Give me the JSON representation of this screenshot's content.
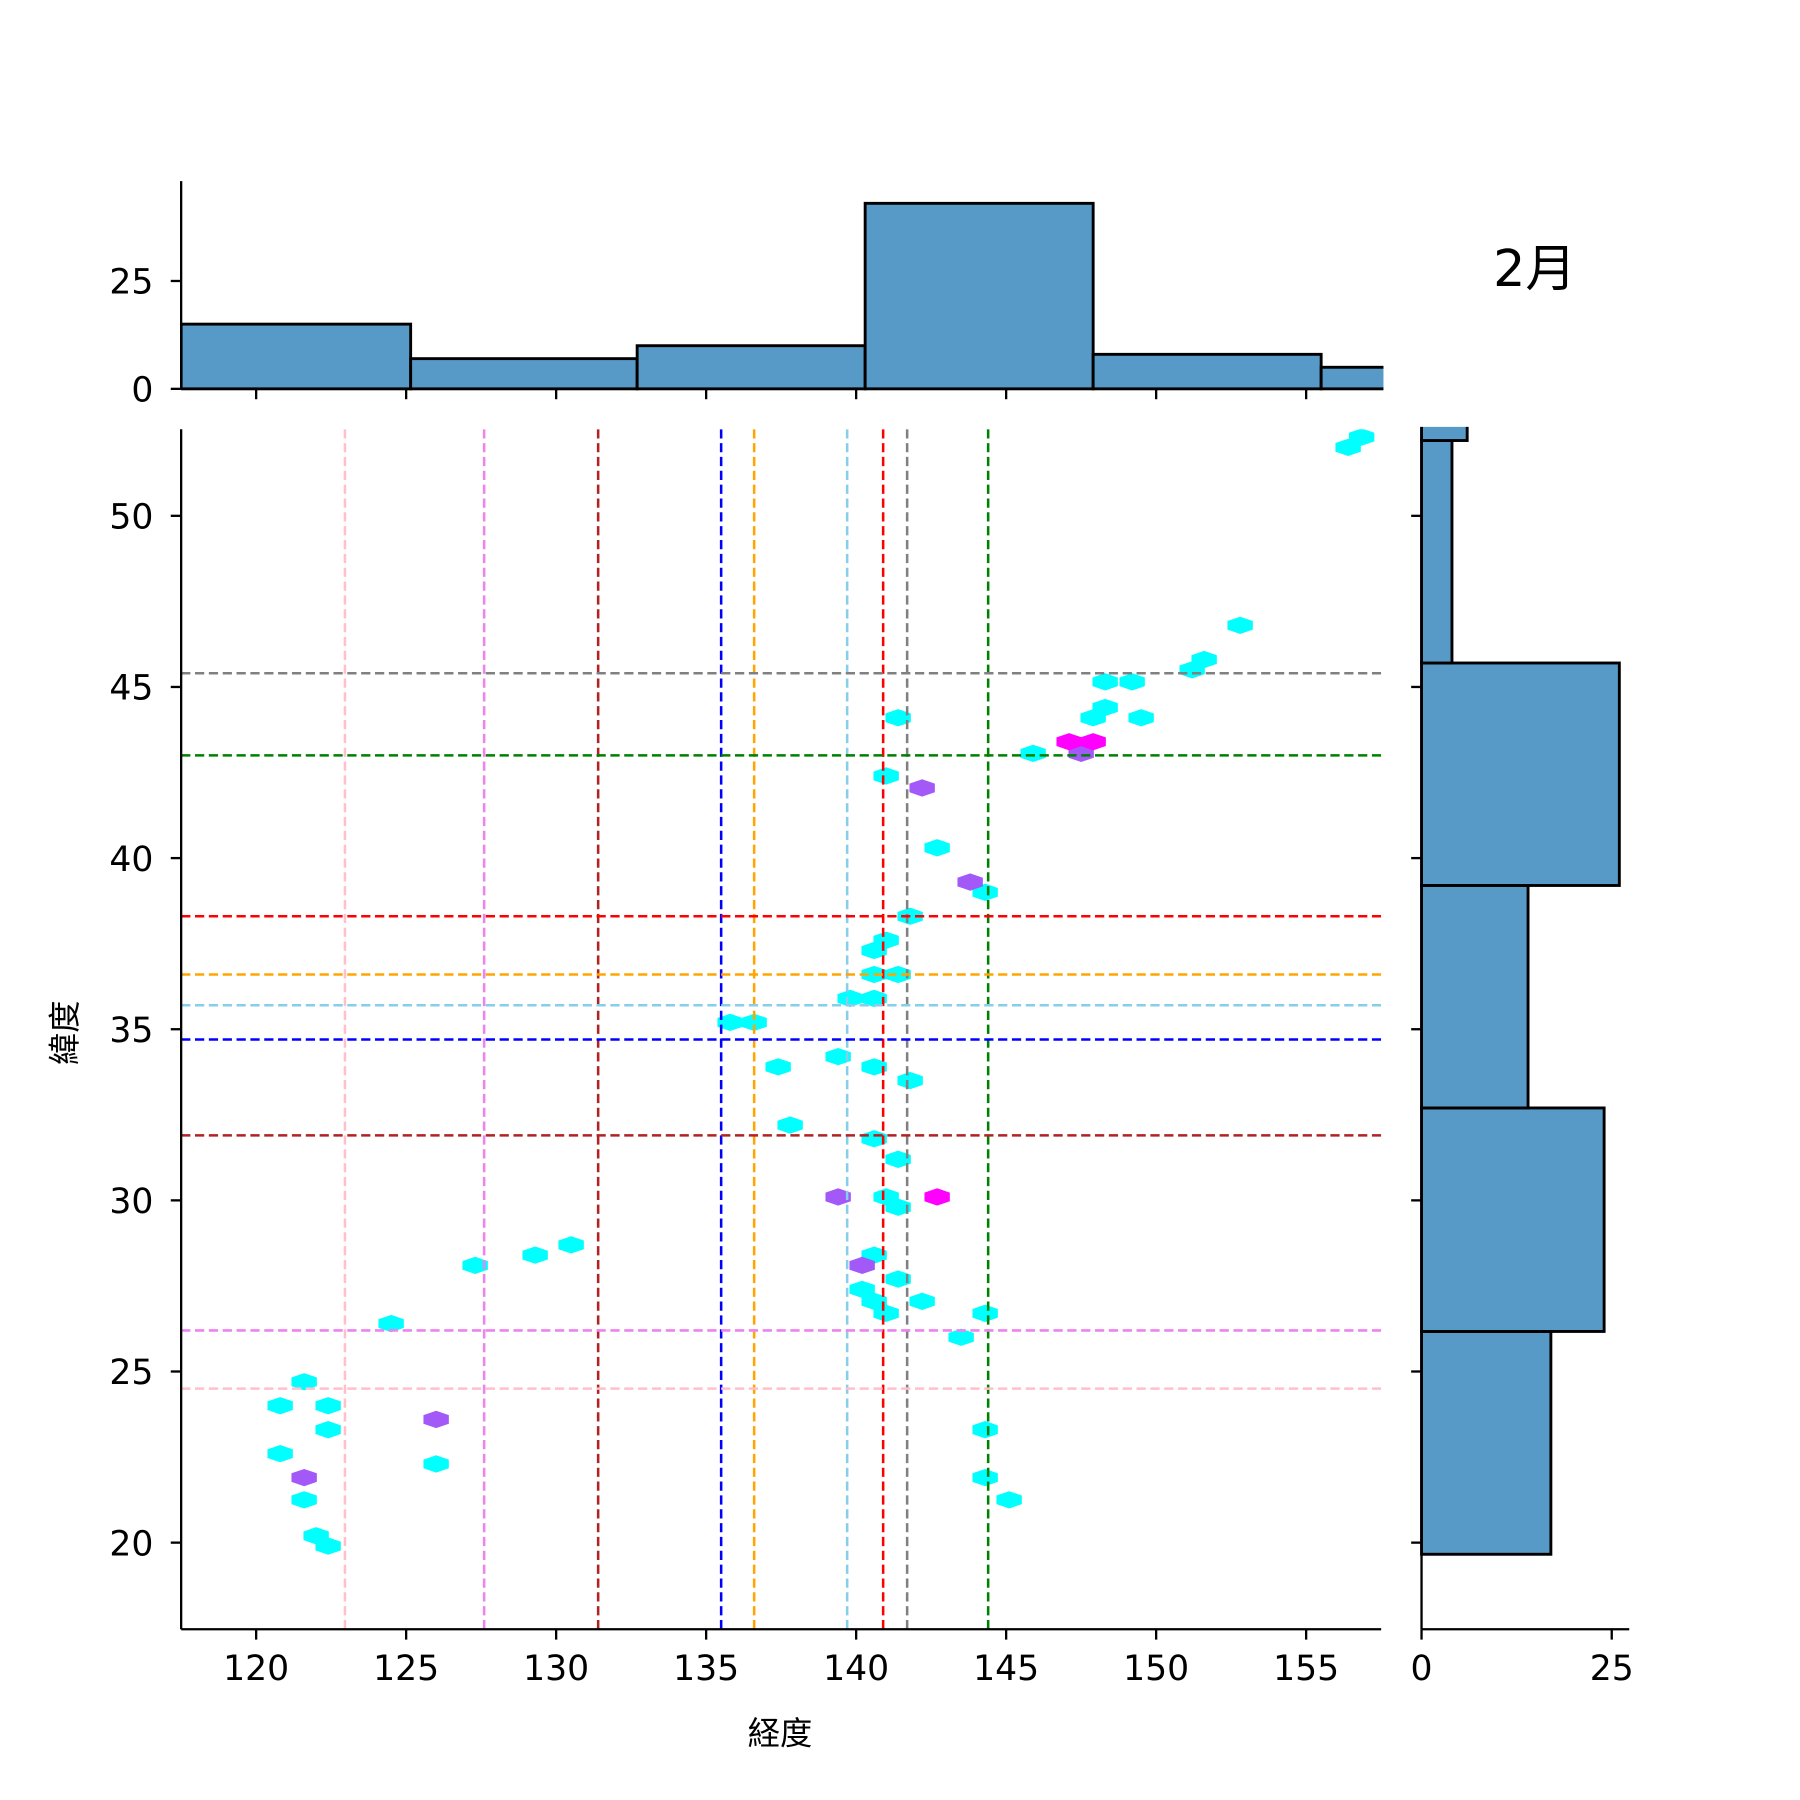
{
  "chart_data": {
    "type": "hexbin-jointplot",
    "title": "2月",
    "xlabel": "経度",
    "ylabel": "緯度",
    "xlim": [
      117.5,
      157.5
    ],
    "ylim": [
      17.47,
      52.53
    ],
    "xticks": [
      120,
      125,
      130,
      135,
      140,
      145,
      150,
      155
    ],
    "yticks": [
      20,
      25,
      30,
      35,
      40,
      45,
      50
    ],
    "colors": {
      "cyan": "#00ffff",
      "purple": "#a259f7",
      "magenta": "#ff00ff",
      "hist": "#5799c7"
    },
    "hexbins": [
      [
        156.85,
        52.3,
        "cyan"
      ],
      [
        156.4,
        52.0,
        "cyan"
      ],
      [
        152.8,
        46.8,
        "cyan"
      ],
      [
        151.6,
        45.8,
        "cyan"
      ],
      [
        151.2,
        45.5,
        "cyan"
      ],
      [
        148.3,
        45.15,
        "cyan"
      ],
      [
        149.2,
        45.15,
        "cyan"
      ],
      [
        148.3,
        44.4,
        "cyan"
      ],
      [
        147.9,
        44.1,
        "cyan"
      ],
      [
        149.5,
        44.1,
        "cyan"
      ],
      [
        141.4,
        44.1,
        "cyan"
      ],
      [
        145.9,
        43.06,
        "cyan"
      ],
      [
        141.0,
        42.4,
        "cyan"
      ],
      [
        142.7,
        40.3,
        "cyan"
      ],
      [
        144.3,
        39.0,
        "cyan"
      ],
      [
        141.8,
        38.3,
        "cyan"
      ],
      [
        141.0,
        37.6,
        "cyan"
      ],
      [
        140.6,
        37.3,
        "cyan"
      ],
      [
        140.6,
        36.6,
        "cyan"
      ],
      [
        141.4,
        36.6,
        "cyan"
      ],
      [
        139.8,
        35.9,
        "cyan"
      ],
      [
        140.6,
        35.9,
        "cyan"
      ],
      [
        135.8,
        35.2,
        "cyan"
      ],
      [
        136.6,
        35.2,
        "cyan"
      ],
      [
        137.4,
        33.9,
        "cyan"
      ],
      [
        139.4,
        34.2,
        "cyan"
      ],
      [
        140.6,
        33.9,
        "cyan"
      ],
      [
        141.8,
        33.5,
        "cyan"
      ],
      [
        137.8,
        32.2,
        "cyan"
      ],
      [
        140.6,
        31.8,
        "cyan"
      ],
      [
        141.4,
        31.2,
        "cyan"
      ],
      [
        141.0,
        30.1,
        "cyan"
      ],
      [
        141.4,
        29.8,
        "cyan"
      ],
      [
        140.6,
        28.4,
        "cyan"
      ],
      [
        140.2,
        27.4,
        "cyan"
      ],
      [
        140.6,
        27.05,
        "cyan"
      ],
      [
        141.4,
        27.7,
        "cyan"
      ],
      [
        141.0,
        26.7,
        "cyan"
      ],
      [
        142.2,
        27.05,
        "cyan"
      ],
      [
        144.3,
        26.7,
        "cyan"
      ],
      [
        143.5,
        26.0,
        "cyan"
      ],
      [
        124.5,
        26.4,
        "cyan"
      ],
      [
        127.3,
        28.1,
        "cyan"
      ],
      [
        129.3,
        28.4,
        "cyan"
      ],
      [
        130.5,
        28.7,
        "cyan"
      ],
      [
        121.6,
        24.7,
        "cyan"
      ],
      [
        120.8,
        24.0,
        "cyan"
      ],
      [
        122.4,
        24.0,
        "cyan"
      ],
      [
        122.4,
        23.3,
        "cyan"
      ],
      [
        120.8,
        22.6,
        "cyan"
      ],
      [
        126.0,
        22.3,
        "cyan"
      ],
      [
        121.6,
        21.25,
        "cyan"
      ],
      [
        122.0,
        20.2,
        "cyan"
      ],
      [
        122.4,
        19.9,
        "cyan"
      ],
      [
        144.3,
        23.3,
        "cyan"
      ],
      [
        144.3,
        21.9,
        "cyan"
      ],
      [
        145.1,
        21.25,
        "cyan"
      ],
      [
        147.5,
        43.06,
        "purple"
      ],
      [
        142.2,
        42.05,
        "purple"
      ],
      [
        143.8,
        39.3,
        "purple"
      ],
      [
        139.4,
        30.1,
        "purple"
      ],
      [
        140.2,
        28.1,
        "purple"
      ],
      [
        126.0,
        23.6,
        "purple"
      ],
      [
        121.6,
        21.9,
        "purple"
      ],
      [
        147.1,
        43.4,
        "magenta"
      ],
      [
        147.9,
        43.4,
        "magenta"
      ],
      [
        142.7,
        30.1,
        "magenta"
      ]
    ],
    "vlines": [
      {
        "x": 122.96,
        "color": "#ffc0cb"
      },
      {
        "x": 127.6,
        "color": "#ee82ee"
      },
      {
        "x": 131.4,
        "color": "#b22222"
      },
      {
        "x": 135.5,
        "color": "#0000ff"
      },
      {
        "x": 136.6,
        "color": "#ffa500"
      },
      {
        "x": 139.7,
        "color": "#87ceeb"
      },
      {
        "x": 140.9,
        "color": "#ff0000"
      },
      {
        "x": 141.7,
        "color": "#808080"
      },
      {
        "x": 144.4,
        "color": "#008000"
      }
    ],
    "hlines": [
      {
        "y": 45.4,
        "color": "#808080"
      },
      {
        "y": 43.0,
        "color": "#008000"
      },
      {
        "y": 38.3,
        "color": "#ff0000"
      },
      {
        "y": 36.6,
        "color": "#ffa500"
      },
      {
        "y": 35.7,
        "color": "#87ceeb"
      },
      {
        "y": 34.7,
        "color": "#0000ff"
      },
      {
        "y": 31.9,
        "color": "#b22222"
      },
      {
        "y": 26.2,
        "color": "#ee82ee"
      },
      {
        "y": 24.5,
        "color": "#ffc0cb"
      }
    ],
    "top_hist": {
      "edges": [
        117.5,
        125.15,
        132.7,
        140.3,
        147.9,
        155.5,
        163.1
      ],
      "counts": [
        15,
        7,
        10,
        43,
        8,
        5
      ],
      "yticks": [
        0,
        25
      ],
      "ylim": [
        0,
        46
      ]
    },
    "right_hist": {
      "edges": [
        19.66,
        26.17,
        32.7,
        39.2,
        45.7,
        52.2,
        58.7
      ],
      "counts": [
        17,
        24,
        14,
        26,
        4,
        6
      ],
      "xticks": [
        0,
        25
      ],
      "xlim": [
        0,
        27.3
      ]
    }
  }
}
